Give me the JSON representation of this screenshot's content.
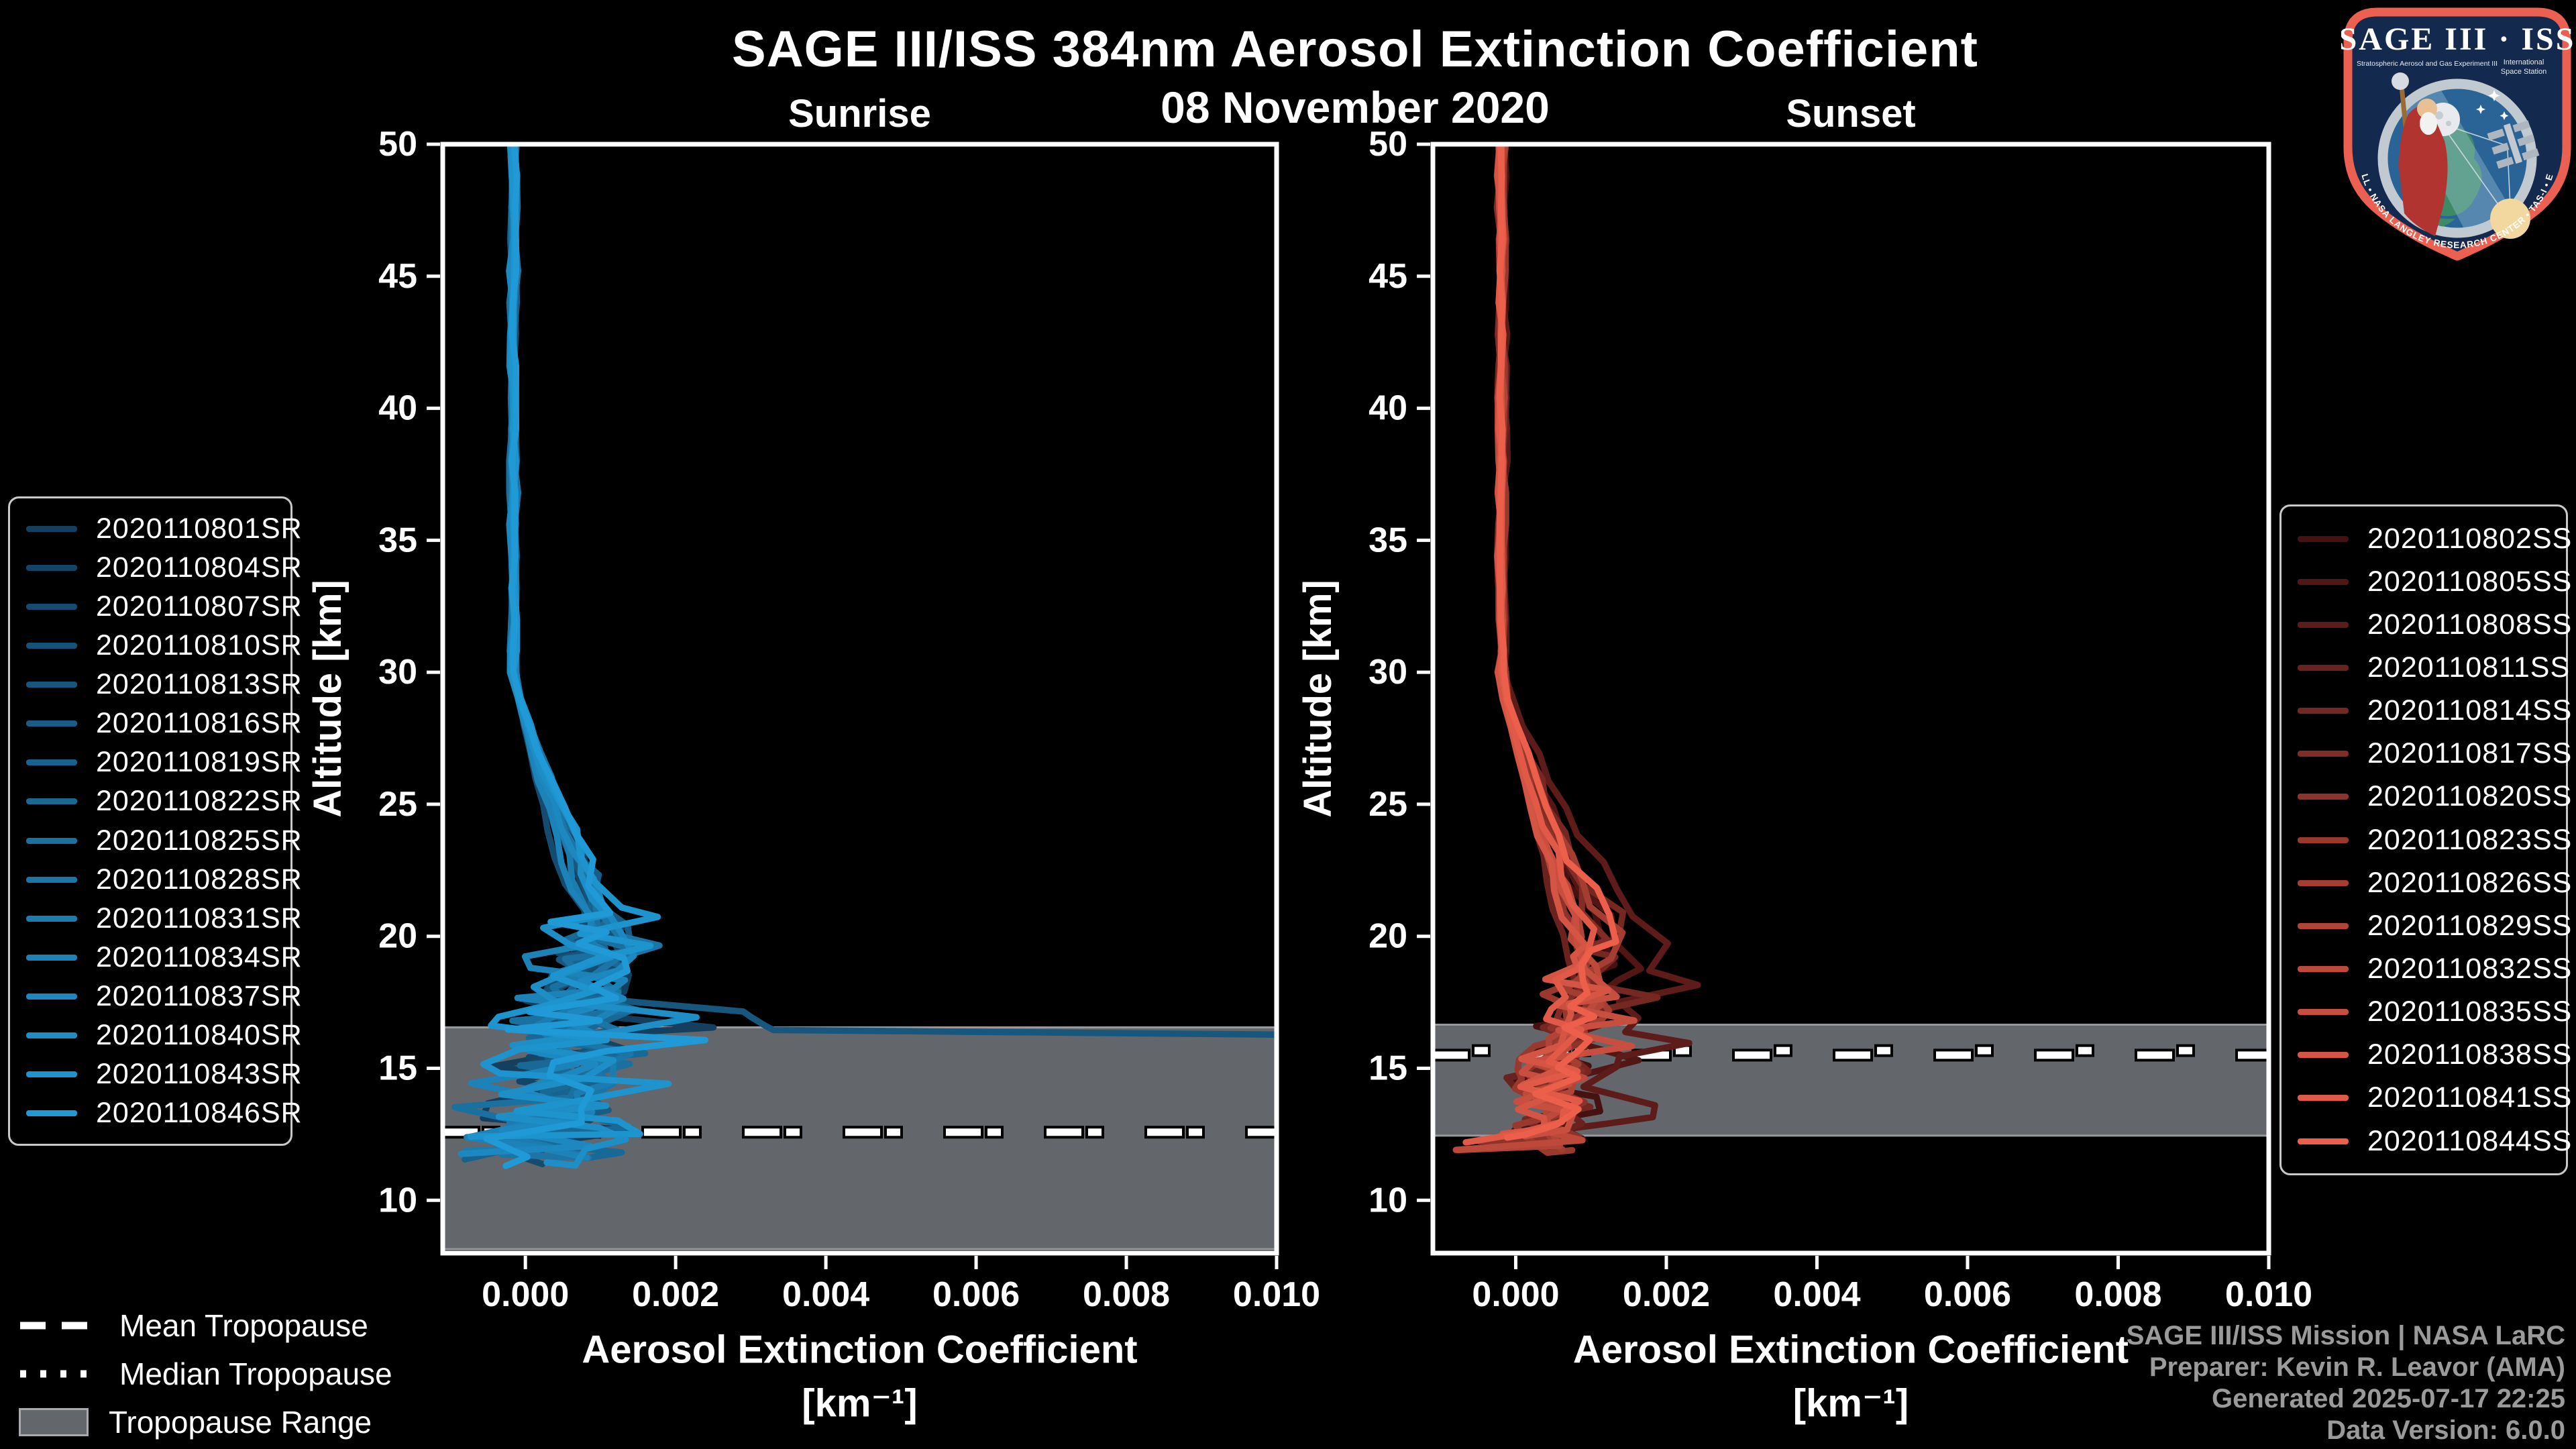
{
  "title": "SAGE III/ISS 384nm Aerosol Extinction Coefficient",
  "date": "08 November 2020",
  "footer": {
    "line1": "SAGE III/ISS Mission | NASA LaRC",
    "line2": "Preparer: Kevin R. Leavor (AMA)",
    "line3": "Generated 2025-07-17 22:25",
    "line4": "Data Version: 6.0.0"
  },
  "tropopause_legend": {
    "mean": "Mean Tropopause",
    "median": "Median Tropopause",
    "range": "Tropopause Range"
  },
  "logo": {
    "title": "SAGE III · ISS",
    "subtitle_left": "Stratospheric Aerosol and Gas Experiment III",
    "subtitle_right_1": "International",
    "subtitle_right_2": "Space Station",
    "ring_text": "BALL • NASA LANGLEY RESEARCH CENTER • TAS-I • ESA"
  },
  "colors": {
    "background": "#000000",
    "text": "#FFFFFF",
    "muted_text": "#9A9A9A",
    "band_fill": "#63676C",
    "band_edge": "#97999D",
    "spine": "#FFFFFF",
    "legend_border": "#C9C9C9",
    "blue_start": "#143F5E",
    "blue_end": "#1F9AD7",
    "red_start": "#451111",
    "red_end": "#EC604B",
    "logo_border": "#EB6050",
    "logo_field": "#13294E",
    "logo_sky": "#2A6496"
  },
  "chart_data": [
    {
      "type": "line",
      "title": "Sunrise",
      "xlabel": "Aerosol Extinction Coefficient",
      "xlabel_units": "[km⁻¹]",
      "ylabel": "Altitude [km]",
      "xlim": [
        -0.0011,
        0.01
      ],
      "ylim": [
        8,
        50
      ],
      "x_ticks": [
        "0.000",
        "0.002",
        "0.004",
        "0.006",
        "0.008",
        "0.010"
      ],
      "x_tick_values": [
        0,
        0.002,
        0.004,
        0.006,
        0.008,
        0.01
      ],
      "y_ticks": [
        10,
        15,
        20,
        25,
        30,
        35,
        40,
        45,
        50
      ],
      "grid": false,
      "legend_position": "left",
      "tropopause": {
        "mean_alt": 12.58,
        "median_alt": 12.58,
        "range": [
          8.15,
          16.55
        ]
      },
      "profile_model": {
        "x_top": -0.00015,
        "peak_alt": 20.3,
        "peak_x": 0.00115,
        "bottom": [
          11.3,
          12.8
        ],
        "amp": 0.0011,
        "xmin_clamp": -0.00095
      },
      "series": [
        {
          "name": "2020110801SR",
          "seed": 11
        },
        {
          "name": "2020110804SR",
          "seed": 12
        },
        {
          "name": "2020110807SR",
          "seed": 13
        },
        {
          "name": "2020110810SR",
          "seed": 14
        },
        {
          "name": "2020110813SR",
          "seed": 15,
          "tail": [
            [
              17.5,
              0.0015
            ],
            [
              17.15,
              0.0029
            ],
            [
              16.95,
              0.003
            ],
            [
              16.6,
              0.0032
            ],
            [
              16.45,
              0.0033
            ],
            [
              16.27,
              0.0102
            ]
          ]
        },
        {
          "name": "2020110816SR",
          "seed": 16
        },
        {
          "name": "2020110819SR",
          "seed": 17
        },
        {
          "name": "2020110822SR",
          "seed": 18
        },
        {
          "name": "2020110825SR",
          "seed": 19
        },
        {
          "name": "2020110828SR",
          "seed": 20
        },
        {
          "name": "2020110831SR",
          "seed": 21
        },
        {
          "name": "2020110834SR",
          "seed": 22,
          "amp": 0.0015
        },
        {
          "name": "2020110837SR",
          "seed": 23
        },
        {
          "name": "2020110840SR",
          "seed": 24
        },
        {
          "name": "2020110843SR",
          "seed": 25,
          "amp": 0.0017
        },
        {
          "name": "2020110846SR",
          "seed": 26
        }
      ]
    },
    {
      "type": "line",
      "title": "Sunset",
      "xlabel": "Aerosol Extinction Coefficient",
      "xlabel_units": "[km⁻¹]",
      "ylabel": "Altitude [km]",
      "xlim": [
        -0.0011,
        0.01
      ],
      "ylim": [
        8,
        50
      ],
      "x_ticks": [
        "0.000",
        "0.002",
        "0.004",
        "0.006",
        "0.008",
        "0.010"
      ],
      "x_tick_values": [
        0,
        0.002,
        0.004,
        0.006,
        0.008,
        0.01
      ],
      "y_ticks": [
        10,
        15,
        20,
        25,
        30,
        35,
        40,
        45,
        50
      ],
      "grid": false,
      "legend_position": "right",
      "tropopause": {
        "mean_alt": 15.5,
        "median_alt": 15.67,
        "range": [
          12.45,
          16.65
        ]
      },
      "profile_model": {
        "x_top": -0.00018,
        "peak_alt": 18.9,
        "peak_x": 0.0012,
        "bottom": [
          11.85,
          12.55
        ],
        "amp": 0.0007,
        "xmin_clamp": -0.0009
      },
      "series": [
        {
          "name": "2020110802SS",
          "seed": 41
        },
        {
          "name": "2020110805SS",
          "seed": 42
        },
        {
          "name": "2020110808SS",
          "seed": 43,
          "peak_alt": 18.7,
          "peak_x": 0.00195,
          "amp": 0.001,
          "tail": [
            [
              14.3,
              0.0009
            ],
            [
              13.6,
              0.00185
            ],
            [
              13.15,
              0.00182
            ],
            [
              12.9,
              0.0012
            ],
            [
              12.6,
              0.0004
            ],
            [
              12.35,
              -0.0002
            ]
          ]
        },
        {
          "name": "2020110811SS",
          "seed": 44
        },
        {
          "name": "2020110814SS",
          "seed": 45
        },
        {
          "name": "2020110817SS",
          "seed": 46
        },
        {
          "name": "2020110820SS",
          "seed": 47
        },
        {
          "name": "2020110823SS",
          "seed": 48
        },
        {
          "name": "2020110826SS",
          "seed": 49
        },
        {
          "name": "2020110829SS",
          "seed": 50
        },
        {
          "name": "2020110832SS",
          "seed": 51
        },
        {
          "name": "2020110835SS",
          "seed": 52
        },
        {
          "name": "2020110838SS",
          "seed": 53
        },
        {
          "name": "2020110841SS",
          "seed": 54
        },
        {
          "name": "2020110844SS",
          "seed": 55
        }
      ]
    }
  ]
}
